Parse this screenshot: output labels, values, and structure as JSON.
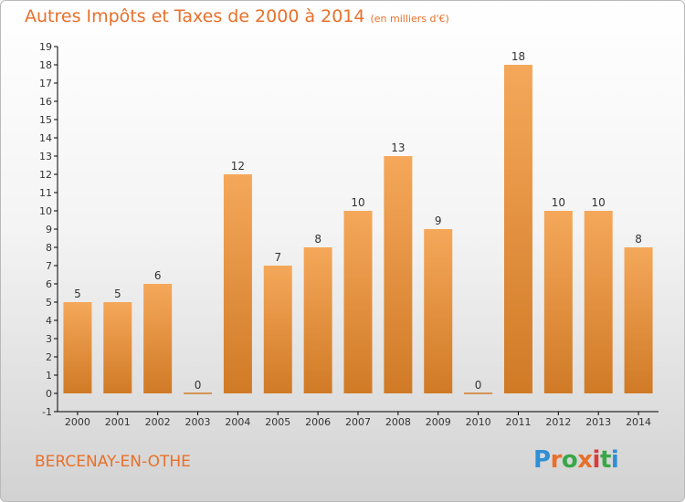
{
  "header": {
    "title": "Autres Impôts et Taxes de 2000 à 2014",
    "unit": "(en milliers d'€)"
  },
  "footer": {
    "place": "BERCENAY-EN-OTHE",
    "logo": [
      "P",
      "r",
      "o",
      "x",
      "i",
      "t",
      "i"
    ],
    "logo_colors": [
      "#2f8fd6",
      "#e8702a",
      "#3aa64a",
      "#e8702a",
      "#d93a3a",
      "#3aa64a",
      "#2f8fd6"
    ]
  },
  "colors": {
    "bar_light": "#f5a85a",
    "bar_dark": "#d07a26",
    "accent": "#e8702a",
    "axis": "#000000",
    "grid": "#c9c9c9"
  },
  "chart_data": {
    "type": "bar",
    "title": "Autres Impôts et Taxes de 2000 à 2014",
    "xlabel": "",
    "ylabel": "",
    "categories": [
      "2000",
      "2001",
      "2002",
      "2003",
      "2004",
      "2005",
      "2006",
      "2007",
      "2008",
      "2009",
      "2010",
      "2011",
      "2012",
      "2013",
      "2014"
    ],
    "values": [
      5,
      5,
      6,
      0,
      12,
      7,
      8,
      10,
      13,
      9,
      0,
      18,
      10,
      10,
      8
    ],
    "ylim": [
      -1,
      19
    ],
    "yticks": [
      "-1",
      "0",
      "1",
      "2",
      "3",
      "4",
      "5",
      "6",
      "7",
      "8",
      "9",
      "10",
      "11",
      "12",
      "13",
      "14",
      "15",
      "16",
      "17",
      "18",
      "19"
    ],
    "grid": false,
    "legend": "none"
  }
}
